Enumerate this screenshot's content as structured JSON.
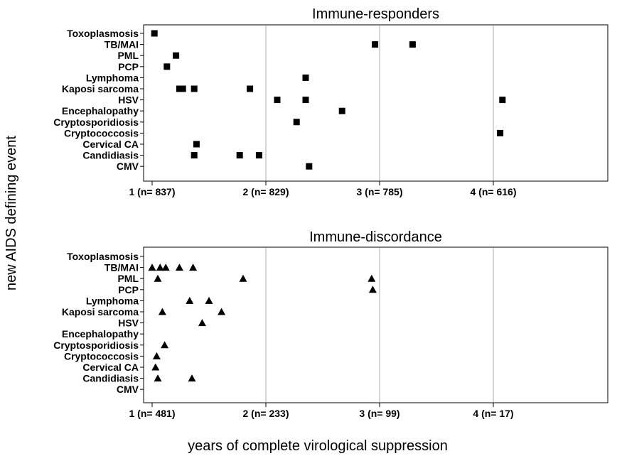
{
  "chart_data": {
    "type": "scatter",
    "ylabel": "new AIDS defining event",
    "xlabel": "years of complete virological suppression",
    "categories": [
      "Toxoplasmosis",
      "TB/MAI",
      "PML",
      "PCP",
      "Lymphoma",
      "Kaposi sarcoma",
      "HSV",
      "Encephalopathy",
      "Cryptosporidiosis",
      "Cryptococcosis",
      "Cervical CA",
      "Candidiasis",
      "CMV"
    ],
    "xlim": [
      0.98,
      5.1
    ],
    "grid": true,
    "panels": [
      {
        "title": "Immune-responders",
        "marker": "square",
        "x_ticks": [
          {
            "x": 1,
            "label": "1 (n= 837)"
          },
          {
            "x": 2,
            "label": "2 (n= 829)"
          },
          {
            "x": 3,
            "label": "3 (n= 785)"
          },
          {
            "x": 4,
            "label": "4 (n= 616)"
          }
        ],
        "points": [
          {
            "category": "Toxoplasmosis",
            "x": 1.02
          },
          {
            "category": "TB/MAI",
            "x": 2.96
          },
          {
            "category": "TB/MAI",
            "x": 3.29
          },
          {
            "category": "PML",
            "x": 1.21
          },
          {
            "category": "PCP",
            "x": 1.13
          },
          {
            "category": "Lymphoma",
            "x": 2.35
          },
          {
            "category": "Kaposi sarcoma",
            "x": 1.24
          },
          {
            "category": "Kaposi sarcoma",
            "x": 1.27
          },
          {
            "category": "Kaposi sarcoma",
            "x": 1.37
          },
          {
            "category": "Kaposi sarcoma",
            "x": 1.86
          },
          {
            "category": "HSV",
            "x": 2.1
          },
          {
            "category": "HSV",
            "x": 2.35
          },
          {
            "category": "HSV",
            "x": 4.08
          },
          {
            "category": "Encephalopathy",
            "x": 2.67
          },
          {
            "category": "Cryptosporidiosis",
            "x": 2.27
          },
          {
            "category": "Cryptococcosis",
            "x": 4.06
          },
          {
            "category": "Cervical CA",
            "x": 1.39
          },
          {
            "category": "Candidiasis",
            "x": 1.37
          },
          {
            "category": "Candidiasis",
            "x": 1.77
          },
          {
            "category": "Candidiasis",
            "x": 1.94
          },
          {
            "category": "CMV",
            "x": 2.38
          }
        ]
      },
      {
        "title": "Immune-discordance",
        "marker": "triangle",
        "x_ticks": [
          {
            "x": 1,
            "label": "1 (n= 481)"
          },
          {
            "x": 2,
            "label": "2 (n= 233)"
          },
          {
            "x": 3,
            "label": "3 (n= 99)"
          },
          {
            "x": 4,
            "label": "4 (n= 17)"
          }
        ],
        "points": [
          {
            "category": "TB/MAI",
            "x": 1.0
          },
          {
            "category": "TB/MAI",
            "x": 1.07
          },
          {
            "category": "TB/MAI",
            "x": 1.12
          },
          {
            "category": "TB/MAI",
            "x": 1.24
          },
          {
            "category": "TB/MAI",
            "x": 1.36
          },
          {
            "category": "PML",
            "x": 1.05
          },
          {
            "category": "PML",
            "x": 1.8
          },
          {
            "category": "PML",
            "x": 2.93
          },
          {
            "category": "PCP",
            "x": 2.94
          },
          {
            "category": "Lymphoma",
            "x": 1.33
          },
          {
            "category": "Lymphoma",
            "x": 1.5
          },
          {
            "category": "Kaposi sarcoma",
            "x": 1.09
          },
          {
            "category": "Kaposi sarcoma",
            "x": 1.61
          },
          {
            "category": "HSV",
            "x": 1.44
          },
          {
            "category": "Cryptosporidiosis",
            "x": 1.11
          },
          {
            "category": "Cryptococcosis",
            "x": 1.04
          },
          {
            "category": "Cervical CA",
            "x": 1.03
          },
          {
            "category": "Candidiasis",
            "x": 1.05
          },
          {
            "category": "Candidiasis",
            "x": 1.35
          }
        ]
      }
    ]
  }
}
